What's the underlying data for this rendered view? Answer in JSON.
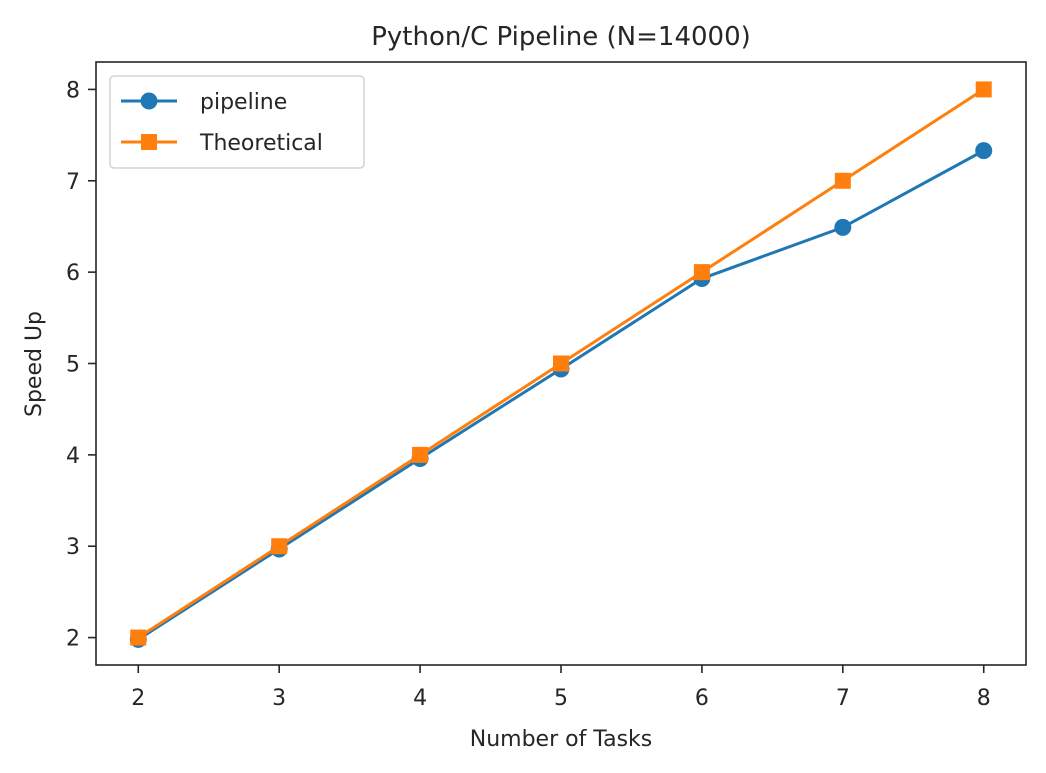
{
  "chart_data": {
    "type": "line",
    "title": "Python/C Pipeline (N=14000)",
    "xlabel": "Number of Tasks",
    "ylabel": "Speed Up",
    "x": [
      2,
      3,
      4,
      5,
      6,
      7,
      8
    ],
    "xlim": [
      1.7,
      8.3
    ],
    "ylim": [
      1.7,
      8.3
    ],
    "xticks": [
      2,
      3,
      4,
      5,
      6,
      7,
      8
    ],
    "yticks": [
      2,
      3,
      4,
      5,
      6,
      7,
      8
    ],
    "grid": false,
    "legend_position": "top-left",
    "series": [
      {
        "name": "pipeline",
        "values": [
          1.98,
          2.97,
          3.96,
          4.94,
          5.93,
          6.49,
          7.33
        ],
        "color": "#1f77b4",
        "marker": "circle"
      },
      {
        "name": "Theoretical",
        "values": [
          2,
          3,
          4,
          5,
          6,
          7,
          8
        ],
        "color": "#ff7f0e",
        "marker": "square"
      }
    ]
  }
}
